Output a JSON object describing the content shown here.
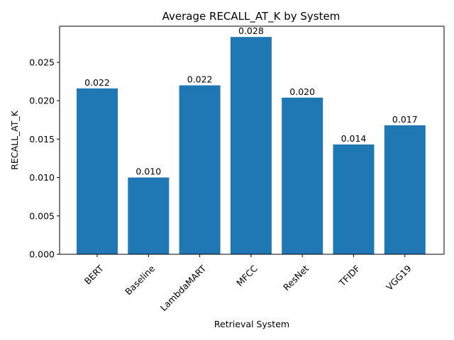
{
  "chart_data": {
    "type": "bar",
    "title": "Average RECALL_AT_K by System",
    "xlabel": "Retrieval System",
    "ylabel": "RECALL_AT_K",
    "categories": [
      "BERT",
      "Baseline",
      "LambdaMART",
      "MFCC",
      "ResNet",
      "TFIDF",
      "VGG19"
    ],
    "values": [
      0.0216,
      0.01,
      0.022,
      0.0283,
      0.0204,
      0.0143,
      0.0168
    ],
    "value_labels": [
      "0.022",
      "0.010",
      "0.022",
      "0.028",
      "0.020",
      "0.014",
      "0.017"
    ],
    "yticks": [
      0.0,
      0.005,
      0.01,
      0.015,
      0.02,
      0.025
    ],
    "ytick_labels": [
      "0.000",
      "0.005",
      "0.010",
      "0.015",
      "0.020",
      "0.025"
    ],
    "ylim": [
      0,
      0.0297
    ],
    "bar_color": "#1f77b4",
    "grid": false,
    "legend": false
  }
}
